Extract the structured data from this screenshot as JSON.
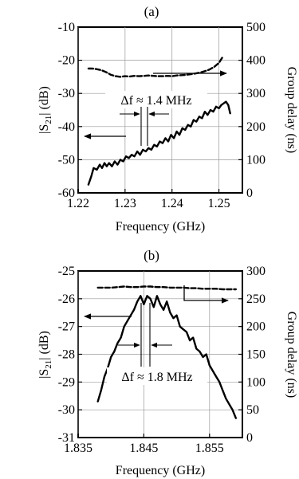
{
  "chart_data": [
    {
      "panel_label": "(a)",
      "type": "line",
      "xlabel": "Frequency (GHz)",
      "ylabel_main": "|S",
      "ylabel_sub": "21",
      "ylabel_tail": "| (dB)",
      "y2label": "Group delay (ns)",
      "xlim": [
        1.22,
        1.255
      ],
      "ylim": [
        -60,
        -10
      ],
      "y2lim": [
        0,
        500
      ],
      "xticks": [
        "1.22",
        "1.23",
        "1.24",
        "1.25"
      ],
      "xtick_values": [
        1.22,
        1.23,
        1.24,
        1.25
      ],
      "yticks": [
        "-60",
        "-50",
        "-40",
        "-30",
        "-20",
        "-10"
      ],
      "ytick_values": [
        -60,
        -50,
        -40,
        -30,
        -20,
        -10
      ],
      "y2ticks": [
        "0",
        "100",
        "200",
        "300",
        "400",
        "500"
      ],
      "y2tick_values": [
        0,
        100,
        200,
        300,
        400,
        500
      ],
      "grid": true,
      "annotation": "Δf ≈ 1.4 MHz",
      "series": [
        {
          "axis": "left",
          "style": "solid",
          "x": [
            1.2222,
            1.2228,
            1.2233,
            1.224,
            1.2246,
            1.2251,
            1.2256,
            1.2261,
            1.2266,
            1.2272,
            1.2278,
            1.2284,
            1.229,
            1.2296,
            1.2302,
            1.2308,
            1.2314,
            1.232,
            1.2326,
            1.2332,
            1.2338,
            1.2344,
            1.235,
            1.2356,
            1.2362,
            1.2368,
            1.2374,
            1.238,
            1.2386,
            1.2392,
            1.2398,
            1.2404,
            1.241,
            1.2416,
            1.2422,
            1.2428,
            1.2434,
            1.244,
            1.2446,
            1.2452,
            1.2458,
            1.2464,
            1.247,
            1.2476,
            1.2482,
            1.2488,
            1.2494,
            1.25,
            1.2505,
            1.251,
            1.2515,
            1.252,
            1.2524
          ],
          "y": [
            -57.5,
            -55.0,
            -52.5,
            -53.0,
            -51.5,
            -52.5,
            -51.0,
            -52.0,
            -51.0,
            -52.0,
            -50.5,
            -51.5,
            -50.0,
            -50.5,
            -49.0,
            -49.5,
            -48.5,
            -49.0,
            -47.5,
            -48.5,
            -47.0,
            -47.5,
            -46.5,
            -47.0,
            -45.5,
            -46.0,
            -44.5,
            -45.0,
            -43.5,
            -44.5,
            -42.5,
            -43.5,
            -41.5,
            -42.5,
            -40.5,
            -41.0,
            -39.5,
            -40.0,
            -38.0,
            -38.5,
            -37.0,
            -37.5,
            -35.5,
            -36.5,
            -35.0,
            -35.5,
            -34.0,
            -34.5,
            -33.5,
            -33.0,
            -32.5,
            -33.5,
            -36.0
          ]
        },
        {
          "axis": "right",
          "style": "dashed",
          "x": [
            1.2222,
            1.223,
            1.224,
            1.225,
            1.226,
            1.227,
            1.228,
            1.229,
            1.23,
            1.231,
            1.232,
            1.233,
            1.234,
            1.235,
            1.236,
            1.237,
            1.238,
            1.239,
            1.24,
            1.241,
            1.242,
            1.243,
            1.244,
            1.245,
            1.246,
            1.247,
            1.248,
            1.249,
            1.25,
            1.2507
          ],
          "y": [
            375,
            375,
            373,
            370,
            364,
            356,
            352,
            350,
            352,
            351,
            353,
            352,
            353,
            354,
            353,
            352,
            352,
            353,
            352,
            354,
            355,
            356,
            358,
            360,
            363,
            367,
            372,
            380,
            392,
            408
          ]
        }
      ]
    },
    {
      "panel_label": "(b)",
      "type": "line",
      "xlabel": "Frequency (GHz)",
      "ylabel_main": "|S",
      "ylabel_sub": "21",
      "ylabel_tail": "| (dB)",
      "y2label": "Group delay (ns)",
      "xlim": [
        1.835,
        1.86
      ],
      "ylim": [
        -31,
        -25
      ],
      "y2lim": [
        0,
        300
      ],
      "xticks": [
        "1.835",
        "1.845",
        "1.855"
      ],
      "xtick_values": [
        1.835,
        1.845,
        1.855
      ],
      "yticks": [
        "-31",
        "-30",
        "-29",
        "-28",
        "-27",
        "-26",
        "-25"
      ],
      "ytick_values": [
        -31,
        -30,
        -29,
        -28,
        -27,
        -26,
        -25
      ],
      "y2ticks": [
        "0",
        "50",
        "100",
        "150",
        "200",
        "250",
        "300"
      ],
      "y2tick_values": [
        0,
        50,
        100,
        150,
        200,
        250,
        300
      ],
      "grid": true,
      "annotation": "Δf ≈ 1.8 MHz",
      "series": [
        {
          "axis": "left",
          "style": "solid",
          "x": [
            1.838,
            1.8385,
            1.839,
            1.8395,
            1.84,
            1.8405,
            1.841,
            1.8415,
            1.842,
            1.8425,
            1.843,
            1.8435,
            1.844,
            1.8445,
            1.845,
            1.8455,
            1.846,
            1.8465,
            1.847,
            1.8475,
            1.848,
            1.8485,
            1.849,
            1.8495,
            1.85,
            1.8505,
            1.851,
            1.8515,
            1.852,
            1.8525,
            1.853,
            1.8535,
            1.854,
            1.8545,
            1.855,
            1.8555,
            1.856,
            1.8565,
            1.857,
            1.8575,
            1.858,
            1.8585,
            1.859
          ],
          "y": [
            -29.7,
            -29.3,
            -28.8,
            -28.5,
            -28.1,
            -27.9,
            -27.6,
            -27.4,
            -27.0,
            -26.8,
            -26.6,
            -26.4,
            -26.1,
            -25.9,
            -26.2,
            -25.9,
            -26.0,
            -26.3,
            -25.9,
            -26.2,
            -26.4,
            -26.1,
            -26.5,
            -26.7,
            -26.6,
            -27.0,
            -27.1,
            -27.2,
            -27.5,
            -27.4,
            -27.8,
            -27.9,
            -28.1,
            -28.0,
            -28.4,
            -28.6,
            -28.8,
            -29.0,
            -29.3,
            -29.6,
            -29.8,
            -30.0,
            -30.3
          ]
        },
        {
          "axis": "right",
          "style": "dashed",
          "x": [
            1.838,
            1.839,
            1.84,
            1.841,
            1.842,
            1.843,
            1.844,
            1.845,
            1.846,
            1.847,
            1.848,
            1.849,
            1.85,
            1.851,
            1.852,
            1.853,
            1.854,
            1.855,
            1.856,
            1.857,
            1.858,
            1.859
          ],
          "y": [
            270,
            270,
            270,
            271,
            272,
            271,
            271,
            272,
            272,
            271,
            271,
            270,
            270,
            270,
            269,
            269,
            268,
            268,
            268,
            267,
            267,
            267
          ]
        }
      ]
    }
  ]
}
